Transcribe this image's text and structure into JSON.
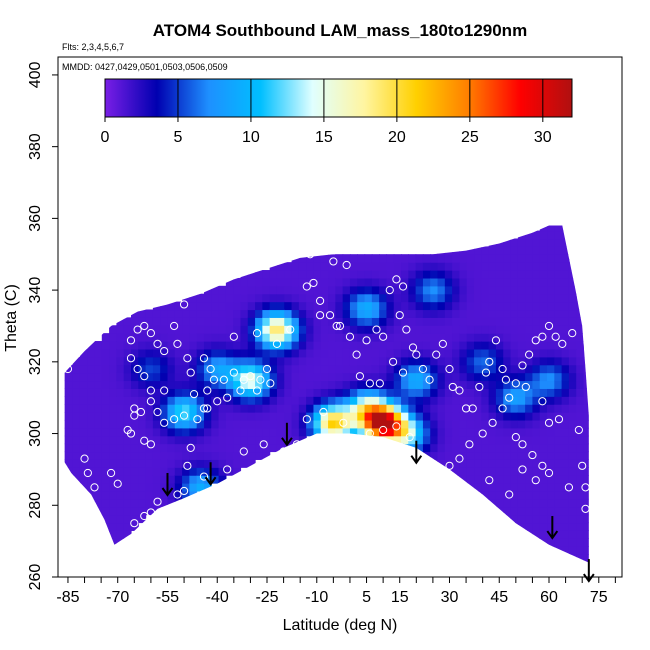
{
  "chart_data": {
    "type": "heatmap",
    "title": "ATOM4 Southbound LAM_mass_180to1290nm",
    "flights_note": "Flts: 2,3,4,5,6,7",
    "dates_note": "MMDD: 0427,0429,0501,0503,0506,0509",
    "xlabel": "Latitude (deg N)",
    "ylabel": "Theta (C)",
    "xlim": [
      -88,
      82
    ],
    "ylim": [
      260,
      405
    ],
    "x_ticks": [
      -85,
      -70,
      -55,
      -40,
      -25,
      -10,
      5,
      15,
      30,
      45,
      60,
      75
    ],
    "y_ticks": [
      260,
      280,
      300,
      320,
      340,
      360,
      380,
      400
    ],
    "colorbar": {
      "ticks": [
        0,
        5,
        10,
        15,
        20,
        25,
        30
      ],
      "range": [
        0,
        32
      ],
      "colors": [
        "#7a1fe6",
        "#0000b0",
        "#1e90ff",
        "#00bfff",
        "#e0ffff",
        "#fff5a0",
        "#ffd000",
        "#ff7f00",
        "#ff0000",
        "#b01010"
      ]
    },
    "domain_upper": [
      [
        -86,
        317
      ],
      [
        -80,
        323
      ],
      [
        -72,
        330
      ],
      [
        -64,
        334
      ],
      [
        -55,
        336
      ],
      [
        -45,
        339
      ],
      [
        -35,
        343
      ],
      [
        -25,
        346
      ],
      [
        -15,
        349
      ],
      [
        -5,
        350
      ],
      [
        5,
        350
      ],
      [
        15,
        350
      ],
      [
        25,
        350
      ],
      [
        35,
        351
      ],
      [
        45,
        353
      ],
      [
        55,
        356
      ],
      [
        60,
        358
      ],
      [
        64,
        358
      ],
      [
        66,
        349
      ],
      [
        68,
        340
      ],
      [
        70,
        330
      ],
      [
        71,
        318
      ],
      [
        72,
        305
      ],
      [
        72,
        290
      ]
    ],
    "domain_lower": [
      [
        72,
        264
      ],
      [
        60,
        269
      ],
      [
        50,
        275
      ],
      [
        40,
        283
      ],
      [
        30,
        290
      ],
      [
        20,
        296
      ],
      [
        10,
        299
      ],
      [
        0,
        300
      ],
      [
        -10,
        300
      ],
      [
        -20,
        296
      ],
      [
        -30,
        291
      ],
      [
        -40,
        286
      ],
      [
        -50,
        282
      ],
      [
        -58,
        279
      ],
      [
        -66,
        272
      ],
      [
        -71,
        269
      ],
      [
        -74,
        276
      ],
      [
        -78,
        283
      ],
      [
        -84,
        289
      ],
      [
        -86,
        292
      ]
    ],
    "hotspots": [
      {
        "lat": 10,
        "theta": 303,
        "value": 30
      },
      {
        "lat": -5,
        "theta": 303,
        "value": 20
      },
      {
        "lat": -22,
        "theta": 329,
        "value": 18
      },
      {
        "lat": -30,
        "theta": 315,
        "value": 14
      },
      {
        "lat": 5,
        "theta": 307,
        "value": 13
      },
      {
        "lat": -50,
        "theta": 306,
        "value": 11
      },
      {
        "lat": 17,
        "theta": 300,
        "value": 12
      },
      {
        "lat": 5,
        "theta": 335,
        "value": 8
      },
      {
        "lat": 50,
        "theta": 310,
        "value": 7
      },
      {
        "lat": 60,
        "theta": 315,
        "value": 6
      },
      {
        "lat": -45,
        "theta": 285,
        "value": 8
      },
      {
        "lat": -40,
        "theta": 318,
        "value": 7
      },
      {
        "lat": 25,
        "theta": 340,
        "value": 6
      },
      {
        "lat": 40,
        "theta": 320,
        "value": 5
      },
      {
        "lat": -60,
        "theta": 318,
        "value": 4
      },
      {
        "lat": 20,
        "theta": 315,
        "value": 8
      }
    ],
    "sample_points": [
      [
        -85,
        318
      ],
      [
        -80,
        293
      ],
      [
        -79,
        289
      ],
      [
        -77,
        285
      ],
      [
        -72,
        289
      ],
      [
        -70,
        286
      ],
      [
        -67,
        269
      ],
      [
        -65,
        275
      ],
      [
        -62,
        277
      ],
      [
        -60,
        278
      ],
      [
        -58,
        281
      ],
      [
        -60,
        297
      ],
      [
        -62,
        298
      ],
      [
        -66,
        300
      ],
      [
        -67,
        301
      ],
      [
        -65,
        305
      ],
      [
        -63,
        306
      ],
      [
        -65,
        307
      ],
      [
        -60,
        309
      ],
      [
        -58,
        306
      ],
      [
        -56,
        312
      ],
      [
        -60,
        312
      ],
      [
        -62,
        316
      ],
      [
        -64,
        318
      ],
      [
        -66,
        321
      ],
      [
        -66,
        326
      ],
      [
        -64,
        329
      ],
      [
        -62,
        330
      ],
      [
        -60,
        328
      ],
      [
        -58,
        325
      ],
      [
        -56,
        323
      ],
      [
        -53,
        330
      ],
      [
        -52,
        325
      ],
      [
        -49,
        321
      ],
      [
        -47,
        311
      ],
      [
        -44,
        307
      ],
      [
        -43,
        312
      ],
      [
        -41,
        315
      ],
      [
        -42,
        318
      ],
      [
        -44,
        321
      ],
      [
        -48,
        317
      ],
      [
        -50,
        336
      ],
      [
        -38,
        315
      ],
      [
        -35,
        317
      ],
      [
        -32,
        315
      ],
      [
        -30,
        316
      ],
      [
        -27,
        315
      ],
      [
        -25,
        318
      ],
      [
        -24,
        314
      ],
      [
        -28,
        312
      ],
      [
        -33,
        312
      ],
      [
        -37,
        310
      ],
      [
        -40,
        309
      ],
      [
        -43,
        307
      ],
      [
        -46,
        304
      ],
      [
        -50,
        305
      ],
      [
        -53,
        304
      ],
      [
        -56,
        303
      ],
      [
        -48,
        296
      ],
      [
        -49,
        291
      ],
      [
        -50,
        284
      ],
      [
        -52,
        283
      ],
      [
        -44,
        288
      ],
      [
        -37,
        290
      ],
      [
        -32,
        295
      ],
      [
        -26,
        297
      ],
      [
        -35,
        327
      ],
      [
        -28,
        328
      ],
      [
        -22,
        325
      ],
      [
        -18,
        329
      ],
      [
        -13,
        341
      ],
      [
        -12,
        350
      ],
      [
        -9,
        337
      ],
      [
        -6,
        333
      ],
      [
        -3,
        330
      ],
      [
        0,
        327
      ],
      [
        2,
        322
      ],
      [
        5,
        326
      ],
      [
        8,
        329
      ],
      [
        10,
        327
      ],
      [
        12,
        340
      ],
      [
        14,
        343
      ],
      [
        16,
        341
      ],
      [
        15,
        333
      ],
      [
        17,
        329
      ],
      [
        19,
        324
      ],
      [
        20,
        322
      ],
      [
        16,
        317
      ],
      [
        13,
        320
      ],
      [
        9,
        314
      ],
      [
        6,
        314
      ],
      [
        3,
        316
      ],
      [
        -4,
        330
      ],
      [
        -1,
        347
      ],
      [
        -5,
        348
      ],
      [
        -11,
        342
      ],
      [
        -9,
        333
      ],
      [
        22,
        318
      ],
      [
        24,
        315
      ],
      [
        26,
        322
      ],
      [
        28,
        325
      ],
      [
        30,
        318
      ],
      [
        31,
        313
      ],
      [
        33,
        312
      ],
      [
        35,
        307
      ],
      [
        37,
        307
      ],
      [
        39,
        313
      ],
      [
        42,
        320
      ],
      [
        44,
        326
      ],
      [
        46,
        318
      ],
      [
        48,
        310
      ],
      [
        50,
        314
      ],
      [
        52,
        319
      ],
      [
        54,
        322
      ],
      [
        56,
        326
      ],
      [
        58,
        327
      ],
      [
        60,
        330
      ],
      [
        62,
        327
      ],
      [
        64,
        325
      ],
      [
        67,
        328
      ],
      [
        69,
        301
      ],
      [
        70,
        291
      ],
      [
        71,
        285
      ],
      [
        71,
        279
      ],
      [
        66,
        285
      ],
      [
        60,
        289
      ],
      [
        58,
        291
      ],
      [
        55,
        294
      ],
      [
        52,
        297
      ],
      [
        50,
        299
      ],
      [
        46,
        307
      ],
      [
        43,
        303
      ],
      [
        40,
        300
      ],
      [
        36,
        297
      ],
      [
        33,
        293
      ],
      [
        30,
        291
      ],
      [
        27,
        289
      ],
      [
        24,
        290
      ],
      [
        18,
        299
      ],
      [
        14,
        302
      ],
      [
        10,
        301
      ],
      [
        6,
        300
      ],
      [
        -2,
        303
      ],
      [
        -8,
        306
      ],
      [
        -13,
        304
      ],
      [
        -16,
        297
      ],
      [
        -20,
        295
      ],
      [
        40,
        280
      ],
      [
        42,
        287
      ],
      [
        48,
        283
      ],
      [
        52,
        290
      ],
      [
        56,
        287
      ],
      [
        60,
        303
      ],
      [
        63,
        304
      ],
      [
        58,
        309
      ],
      [
        53,
        313
      ],
      [
        47,
        315
      ],
      [
        41,
        317
      ]
    ],
    "arrows": [
      {
        "lat": -55,
        "theta": 289
      },
      {
        "lat": -42,
        "theta": 292
      },
      {
        "lat": -19,
        "theta": 303
      },
      {
        "lat": 20,
        "theta": 298
      },
      {
        "lat": 61,
        "theta": 277
      },
      {
        "lat": 72,
        "theta": 265
      }
    ]
  }
}
